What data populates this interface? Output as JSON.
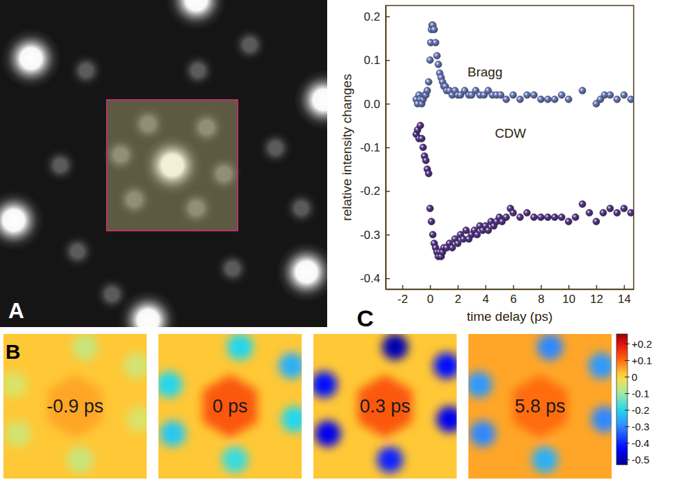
{
  "chart_data": [
    {
      "type": "image",
      "label": "A",
      "xlim": [
        -1.0,
        0.9
      ],
      "ylim": [
        -0.94,
        0.96
      ],
      "tick_labels": false,
      "spots": [
        {
          "x": 0.0,
          "y": 0.0,
          "intensity": 1.0
        },
        {
          "x": -0.82,
          "y": 0.62,
          "intensity": 1.0
        },
        {
          "x": 0.14,
          "y": 0.96,
          "intensity": 1.0
        },
        {
          "x": 0.88,
          "y": 0.38,
          "intensity": 1.0
        },
        {
          "x": -0.92,
          "y": -0.32,
          "intensity": 1.0
        },
        {
          "x": 0.78,
          "y": -0.62,
          "intensity": 1.0
        },
        {
          "x": -0.14,
          "y": -0.9,
          "intensity": 1.0
        },
        {
          "x": -0.14,
          "y": 0.24,
          "intensity": 0.35
        },
        {
          "x": 0.2,
          "y": 0.22,
          "intensity": 0.35
        },
        {
          "x": 0.3,
          "y": -0.05,
          "intensity": 0.35
        },
        {
          "x": 0.14,
          "y": -0.25,
          "intensity": 0.35
        },
        {
          "x": -0.22,
          "y": -0.2,
          "intensity": 0.35
        },
        {
          "x": -0.3,
          "y": 0.06,
          "intensity": 0.35
        },
        {
          "x": -0.5,
          "y": 0.55,
          "intensity": 0.3
        },
        {
          "x": 0.45,
          "y": 0.7,
          "intensity": 0.3
        },
        {
          "x": 0.6,
          "y": 0.1,
          "intensity": 0.3
        },
        {
          "x": 0.35,
          "y": -0.6,
          "intensity": 0.3
        },
        {
          "x": -0.55,
          "y": -0.5,
          "intensity": 0.3
        },
        {
          "x": -0.65,
          "y": 0.0,
          "intensity": 0.3
        },
        {
          "x": 0.15,
          "y": 0.55,
          "intensity": 0.3
        },
        {
          "x": -0.35,
          "y": -0.75,
          "intensity": 0.3
        },
        {
          "x": 0.75,
          "y": -0.25,
          "intensity": 0.3
        }
      ],
      "roi": {
        "x": [
          -0.38,
          0.38
        ],
        "y": [
          -0.38,
          0.38
        ]
      }
    },
    {
      "type": "heatmap",
      "label": "B",
      "xlim": [
        -1,
        1
      ],
      "ylim": [
        -1,
        1
      ],
      "tick_labels": false,
      "satellite_x": [
        0.14,
        0.86,
        0.9,
        0.07,
        -0.8,
        -0.85
      ],
      "satellite_y": [
        0.82,
        0.56,
        -0.18,
        -0.74,
        -0.38,
        0.3
      ],
      "maps": [
        {
          "label": "-0.9 ps",
          "background": 0.02,
          "center": 0.05,
          "satellites": [
            -0.06,
            -0.05,
            -0.04,
            -0.06,
            -0.05,
            -0.04
          ]
        },
        {
          "label": "0 ps",
          "background": 0.02,
          "center": 0.12,
          "satellites": [
            -0.2,
            -0.25,
            -0.2,
            -0.18,
            -0.22,
            -0.2
          ]
        },
        {
          "label": "0.3 ps",
          "background": 0.02,
          "center": 0.12,
          "satellites": [
            -0.5,
            -0.42,
            -0.45,
            -0.4,
            -0.45,
            -0.42
          ]
        },
        {
          "label": "5.8 ps",
          "background": 0.05,
          "center": 0.1,
          "satellites": [
            -0.3,
            -0.28,
            -0.3,
            -0.25,
            -0.3,
            -0.28
          ]
        }
      ],
      "colorbar": {
        "range": [
          -0.53,
          0.26
        ],
        "ticks": [
          {
            "value": 0.2,
            "label": "+0.2"
          },
          {
            "value": 0.1,
            "label": "+0.1"
          },
          0,
          -0.1,
          -0.2,
          -0.3,
          -0.4,
          -0.5
        ]
      }
    },
    {
      "type": "scatter",
      "label": "C",
      "x_label": "time delay (ps)",
      "y_label": "relative intensity changes",
      "xlim": [
        -3.2,
        14.7
      ],
      "ylim": [
        -0.425,
        0.225
      ],
      "xticks": [
        -2,
        0,
        2,
        4,
        6,
        8,
        10,
        12,
        14
      ],
      "yticks": [
        -0.4,
        -0.3,
        -0.2,
        -0.1,
        {
          "value": 0.0,
          "label": "0.0"
        },
        0.1,
        0.2
      ],
      "series": [
        {
          "name": "Bragg",
          "color": "#6f7fc0",
          "marker": "circle",
          "x": [
            -1.0,
            -0.9,
            -0.8,
            -0.7,
            -0.6,
            -0.5,
            -0.4,
            -0.3,
            -0.2,
            -0.1,
            0.0,
            0.05,
            0.1,
            0.15,
            0.2,
            0.3,
            0.4,
            0.5,
            0.6,
            0.7,
            0.8,
            0.9,
            1.0,
            1.1,
            1.2,
            1.4,
            1.6,
            1.8,
            2.0,
            2.2,
            2.5,
            2.8,
            3.0,
            3.3,
            3.6,
            3.9,
            4.2,
            4.5,
            4.8,
            5.1,
            5.5,
            6.0,
            6.5,
            7.0,
            7.5,
            8.0,
            8.5,
            9.0,
            9.5,
            10.0,
            11.0,
            12.0,
            12.3,
            12.6,
            13.0,
            13.5,
            14.0,
            14.5
          ],
          "values": [
            0.01,
            0.0,
            0.02,
            0.01,
            0.0,
            0.01,
            0.02,
            0.02,
            0.03,
            0.05,
            0.1,
            0.14,
            0.17,
            0.18,
            0.18,
            0.17,
            0.14,
            0.11,
            0.09,
            0.07,
            0.06,
            0.05,
            0.04,
            0.04,
            0.03,
            0.03,
            0.02,
            0.03,
            0.02,
            0.02,
            0.03,
            0.02,
            0.02,
            0.03,
            0.02,
            0.02,
            0.03,
            0.02,
            0.02,
            0.02,
            0.01,
            0.02,
            0.01,
            0.02,
            0.02,
            0.01,
            0.01,
            0.01,
            0.02,
            0.01,
            0.03,
            0.0,
            0.01,
            0.02,
            0.02,
            0.01,
            0.02,
            0.01
          ]
        },
        {
          "name": "CDW",
          "color": "#5b3a8e",
          "marker": "circle",
          "x": [
            -1.0,
            -0.9,
            -0.8,
            -0.7,
            -0.6,
            -0.5,
            -0.4,
            -0.3,
            -0.2,
            -0.1,
            0.0,
            0.1,
            0.2,
            0.3,
            0.4,
            0.5,
            0.6,
            0.7,
            0.8,
            0.9,
            1.0,
            1.2,
            1.4,
            1.6,
            1.8,
            2.0,
            2.2,
            2.4,
            2.6,
            2.8,
            3.0,
            3.2,
            3.4,
            3.6,
            3.8,
            4.0,
            4.2,
            4.4,
            4.6,
            4.8,
            5.0,
            5.2,
            5.5,
            5.8,
            6.0,
            6.5,
            7.0,
            7.5,
            8.0,
            8.5,
            9.0,
            9.5,
            10.0,
            10.5,
            11.0,
            11.5,
            12.0,
            12.5,
            13.0,
            13.5,
            14.0,
            14.5
          ],
          "values": [
            -0.07,
            -0.06,
            -0.08,
            -0.05,
            -0.08,
            -0.1,
            -0.12,
            -0.13,
            -0.15,
            -0.16,
            -0.24,
            -0.27,
            -0.3,
            -0.32,
            -0.33,
            -0.34,
            -0.35,
            -0.34,
            -0.35,
            -0.34,
            -0.33,
            -0.33,
            -0.32,
            -0.33,
            -0.31,
            -0.32,
            -0.3,
            -0.31,
            -0.29,
            -0.31,
            -0.3,
            -0.29,
            -0.3,
            -0.28,
            -0.29,
            -0.28,
            -0.29,
            -0.27,
            -0.28,
            -0.27,
            -0.26,
            -0.27,
            -0.26,
            -0.24,
            -0.25,
            -0.26,
            -0.25,
            -0.26,
            -0.26,
            -0.26,
            -0.26,
            -0.26,
            -0.27,
            -0.26,
            -0.23,
            -0.25,
            -0.27,
            -0.25,
            -0.24,
            -0.25,
            -0.24,
            -0.25
          ]
        }
      ]
    }
  ]
}
